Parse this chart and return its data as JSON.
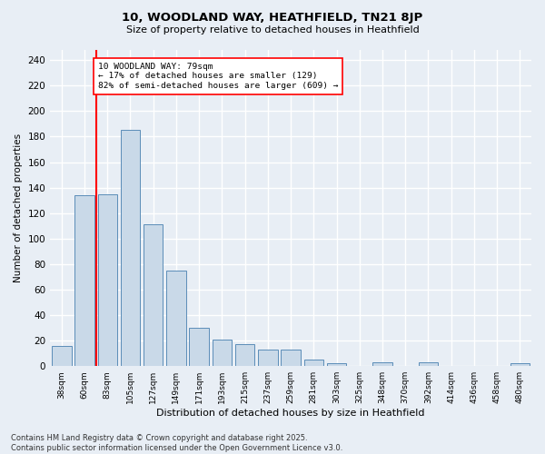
{
  "title_line1": "10, WOODLAND WAY, HEATHFIELD, TN21 8JP",
  "title_line2": "Size of property relative to detached houses in Heathfield",
  "xlabel": "Distribution of detached houses by size in Heathfield",
  "ylabel": "Number of detached properties",
  "categories": [
    "38sqm",
    "60sqm",
    "83sqm",
    "105sqm",
    "127sqm",
    "149sqm",
    "171sqm",
    "193sqm",
    "215sqm",
    "237sqm",
    "259sqm",
    "281sqm",
    "303sqm",
    "325sqm",
    "348sqm",
    "370sqm",
    "392sqm",
    "414sqm",
    "436sqm",
    "458sqm",
    "480sqm"
  ],
  "values": [
    16,
    134,
    135,
    185,
    111,
    75,
    30,
    21,
    17,
    13,
    13,
    5,
    2,
    0,
    3,
    0,
    3,
    0,
    0,
    0,
    2
  ],
  "bar_color": "#c9d9e8",
  "bar_edge_color": "#5b8db8",
  "background_color": "#e8eef5",
  "grid_color": "#ffffff",
  "vline_x": 1.5,
  "vline_color": "red",
  "annotation_text": "10 WOODLAND WAY: 79sqm\n← 17% of detached houses are smaller (129)\n82% of semi-detached houses are larger (609) →",
  "annotation_box_color": "white",
  "annotation_box_edge_color": "red",
  "footer_text": "Contains HM Land Registry data © Crown copyright and database right 2025.\nContains public sector information licensed under the Open Government Licence v3.0.",
  "ylim": [
    0,
    248
  ],
  "yticks": [
    0,
    20,
    40,
    60,
    80,
    100,
    120,
    140,
    160,
    180,
    200,
    220,
    240
  ]
}
